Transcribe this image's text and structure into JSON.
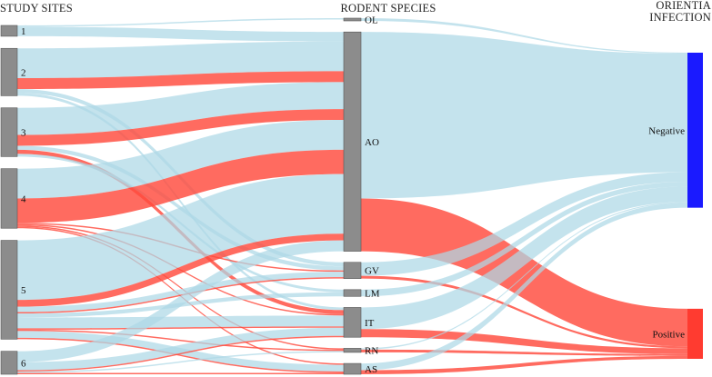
{
  "column_headers": {
    "sites": "STUDY SITES",
    "species": "RODENT SPECIES",
    "infection_line1": "ORIENTIA",
    "infection_line2": "INFECTION"
  },
  "nodes": {
    "sites": [
      "1",
      "2",
      "3",
      "4",
      "5",
      "6"
    ],
    "species": [
      "OL",
      "AO",
      "GV",
      "LM",
      "IT",
      "RN",
      "AS"
    ],
    "infection": [
      "Negative",
      "Positive"
    ]
  },
  "colors": {
    "negative_link": "#add8e6",
    "positive_link": "#ff4a3d",
    "negative_node": "#1a1aff",
    "positive_node": "#ff3b30",
    "grey_node": "#8c8c8c"
  },
  "chart_data": {
    "type": "sankey",
    "columns": [
      "STUDY SITES",
      "RODENT SPECIES",
      "ORIENTIA INFECTION"
    ],
    "links_site_species": [
      {
        "source": "1",
        "target": "OL",
        "status": "Negative",
        "value": 1
      },
      {
        "source": "1",
        "target": "AO",
        "status": "Negative",
        "value": 7
      },
      {
        "source": "2",
        "target": "AO",
        "status": "Negative",
        "value": 22
      },
      {
        "source": "2",
        "target": "AO",
        "status": "Positive",
        "value": 8
      },
      {
        "source": "2",
        "target": "GV",
        "status": "Negative",
        "value": 3
      },
      {
        "source": "2",
        "target": "IT",
        "status": "Negative",
        "value": 2
      },
      {
        "source": "3",
        "target": "AO",
        "status": "Negative",
        "value": 20
      },
      {
        "source": "3",
        "target": "AO",
        "status": "Positive",
        "value": 8
      },
      {
        "source": "3",
        "target": "GV",
        "status": "Negative",
        "value": 3
      },
      {
        "source": "3",
        "target": "IT",
        "status": "Positive",
        "value": 3
      },
      {
        "source": "3",
        "target": "LM",
        "status": "Negative",
        "value": 2
      },
      {
        "source": "4",
        "target": "AO",
        "status": "Negative",
        "value": 22
      },
      {
        "source": "4",
        "target": "AO",
        "status": "Positive",
        "value": 18
      },
      {
        "source": "4",
        "target": "GV",
        "status": "Positive",
        "value": 1
      },
      {
        "source": "4",
        "target": "IT",
        "status": "Positive",
        "value": 1
      },
      {
        "source": "4",
        "target": "RN",
        "status": "Positive",
        "value": 1
      },
      {
        "source": "4",
        "target": "AS",
        "status": "Positive",
        "value": 1
      },
      {
        "source": "5",
        "target": "AO",
        "status": "Negative",
        "value": 44
      },
      {
        "source": "5",
        "target": "AO",
        "status": "Positive",
        "value": 5
      },
      {
        "source": "5",
        "target": "GV",
        "status": "Negative",
        "value": 4
      },
      {
        "source": "5",
        "target": "GV",
        "status": "Positive",
        "value": 1
      },
      {
        "source": "5",
        "target": "LM",
        "status": "Negative",
        "value": 3
      },
      {
        "source": "5",
        "target": "IT",
        "status": "Negative",
        "value": 8
      },
      {
        "source": "5",
        "target": "IT",
        "status": "Positive",
        "value": 1
      },
      {
        "source": "5",
        "target": "RN",
        "status": "Positive",
        "value": 1
      },
      {
        "source": "5",
        "target": "AS",
        "status": "Negative",
        "value": 5
      },
      {
        "source": "5",
        "target": "AS",
        "status": "Positive",
        "value": 1
      },
      {
        "source": "6",
        "target": "AO",
        "status": "Negative",
        "value": 8
      },
      {
        "source": "6",
        "target": "IT",
        "status": "Negative",
        "value": 6
      },
      {
        "source": "6",
        "target": "IT",
        "status": "Positive",
        "value": 1
      },
      {
        "source": "6",
        "target": "RN",
        "status": "Negative",
        "value": 1
      },
      {
        "source": "6",
        "target": "AS",
        "status": "Positive",
        "value": 1
      }
    ],
    "links_species_infection": [
      {
        "source": "OL",
        "target": "Negative",
        "value": 1
      },
      {
        "source": "AO",
        "target": "Negative",
        "value": 123
      },
      {
        "source": "AO",
        "target": "Positive",
        "value": 39
      },
      {
        "source": "GV",
        "target": "Negative",
        "value": 10
      },
      {
        "source": "GV",
        "target": "Positive",
        "value": 2
      },
      {
        "source": "LM",
        "target": "Negative",
        "value": 5
      },
      {
        "source": "IT",
        "target": "Negative",
        "value": 16
      },
      {
        "source": "IT",
        "target": "Positive",
        "value": 6
      },
      {
        "source": "RN",
        "target": "Negative",
        "value": 1
      },
      {
        "source": "RN",
        "target": "Positive",
        "value": 2
      },
      {
        "source": "AS",
        "target": "Negative",
        "value": 5
      },
      {
        "source": "AS",
        "target": "Positive",
        "value": 3
      }
    ]
  }
}
